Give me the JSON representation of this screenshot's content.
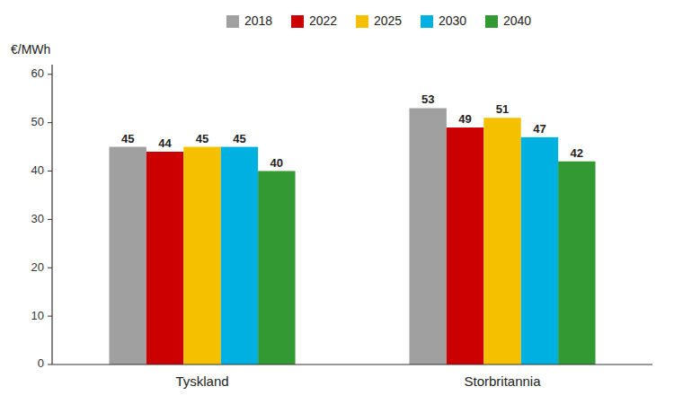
{
  "chart_data": {
    "type": "bar",
    "y_label": "€/MWh",
    "categories": [
      "Tyskland",
      "Storbritannia"
    ],
    "series": [
      {
        "name": "2018",
        "color": "#a0a0a0",
        "values": [
          45,
          53
        ]
      },
      {
        "name": "2022",
        "color": "#cc0000",
        "values": [
          44,
          49
        ]
      },
      {
        "name": "2025",
        "color": "#f5c000",
        "values": [
          45,
          51
        ]
      },
      {
        "name": "2030",
        "color": "#00b0e0",
        "values": [
          45,
          47
        ]
      },
      {
        "name": "2040",
        "color": "#339933",
        "values": [
          40,
          42
        ]
      }
    ],
    "ylim": [
      0,
      62
    ],
    "yticks": [
      0,
      10,
      20,
      30,
      40,
      50,
      60
    ],
    "grid": false,
    "legend": "top",
    "data_labels": true
  }
}
